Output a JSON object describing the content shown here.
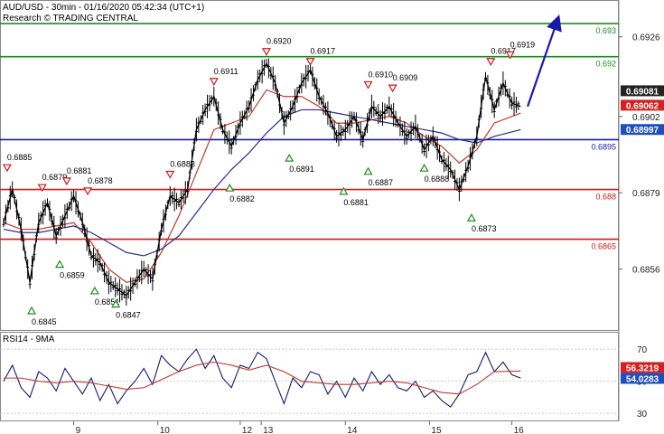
{
  "header": {
    "title": "AUD/USD - 30min - 01/16/2020 05:42:34 (UTC+1)",
    "research": "Research © TRADING CENTRAL"
  },
  "colors": {
    "green": "#1f8a1f",
    "blue": "#1a1aa8",
    "red": "#cc1a1a",
    "price": "#000000",
    "ma_red": "#c0392b",
    "ma_blue": "#2b2b8f",
    "badge_dark": "#222222",
    "badge_red": "#d42020",
    "badge_blue": "#1e4fc2"
  },
  "chart_data": [
    {
      "type": "candlestick",
      "title": "AUD/USD - 30min - 01/16/2020 05:42:34 (UTC+1)",
      "ylim": [
        0.6839,
        0.6936
      ],
      "y_ticks": [
        "0.6926",
        "0.6902",
        "0.6879",
        "0.6856"
      ],
      "x_ticks": [
        "9",
        "10",
        "12",
        "13",
        "14",
        "15",
        "16"
      ],
      "levels": [
        {
          "value": 0.693,
          "label": "0.693",
          "color": "#1f8a1f"
        },
        {
          "value": 0.692,
          "label": "0.692",
          "color": "#1f8a1f"
        },
        {
          "value": 0.6895,
          "label": "0.6895",
          "color": "#1a1aa8"
        },
        {
          "value": 0.688,
          "label": "0.688",
          "color": "#cc1a1a"
        },
        {
          "value": 0.6865,
          "label": "0.6865",
          "color": "#cc1a1a"
        }
      ],
      "highs": [
        {
          "x": 0.2,
          "value": "0.6885"
        },
        {
          "x": 2.2,
          "value": "0.6879"
        },
        {
          "x": 3.6,
          "value": "0.6881"
        },
        {
          "x": 4.8,
          "value": "0.6878"
        },
        {
          "x": 9.5,
          "value": "0.6883"
        },
        {
          "x": 12.0,
          "value": "0.6911"
        },
        {
          "x": 15.0,
          "value": "0.6920"
        },
        {
          "x": 17.5,
          "value": "0.6917"
        },
        {
          "x": 20.8,
          "value": "0.6910"
        },
        {
          "x": 22.2,
          "value": "0.6909"
        },
        {
          "x": 27.8,
          "value": "0.6917"
        },
        {
          "x": 28.9,
          "value": "0.6919"
        }
      ],
      "lows": [
        {
          "x": 1.6,
          "value": "0.6845"
        },
        {
          "x": 3.2,
          "value": "0.6859"
        },
        {
          "x": 5.2,
          "value": "0.6851"
        },
        {
          "x": 6.4,
          "value": "0.6847"
        },
        {
          "x": 12.9,
          "value": "0.6882"
        },
        {
          "x": 16.3,
          "value": "0.6891"
        },
        {
          "x": 19.4,
          "value": "0.6881"
        },
        {
          "x": 20.8,
          "value": "0.6887"
        },
        {
          "x": 24.0,
          "value": "0.6888"
        },
        {
          "x": 26.7,
          "value": "0.6873"
        }
      ],
      "series": [
        {
          "name": "close",
          "x": [
            0,
            0.5,
            1,
            1.5,
            2,
            2.5,
            3,
            3.5,
            4,
            4.5,
            5,
            5.5,
            6,
            6.5,
            7,
            7.5,
            8,
            8.5,
            9,
            9.5,
            10,
            10.5,
            11,
            11.5,
            12,
            12.5,
            13,
            13.5,
            14,
            14.5,
            15,
            15.5,
            16,
            16.5,
            17,
            17.5,
            18,
            18.5,
            19,
            19.5,
            20,
            20.5,
            21,
            21.5,
            22,
            22.5,
            23,
            23.5,
            24,
            24.5,
            25,
            25.5,
            26,
            26.5,
            27,
            27.5,
            28,
            28.5,
            29,
            29.5
          ],
          "values": [
            0.687,
            0.688,
            0.6868,
            0.6852,
            0.687,
            0.6876,
            0.6866,
            0.6872,
            0.6878,
            0.687,
            0.686,
            0.6858,
            0.6852,
            0.685,
            0.6848,
            0.6852,
            0.6856,
            0.6853,
            0.6868,
            0.6878,
            0.6876,
            0.688,
            0.6898,
            0.6904,
            0.6908,
            0.6898,
            0.6893,
            0.69,
            0.6905,
            0.6913,
            0.6918,
            0.6912,
            0.69,
            0.6905,
            0.6912,
            0.6916,
            0.6908,
            0.6903,
            0.6896,
            0.6898,
            0.6902,
            0.6895,
            0.6905,
            0.6902,
            0.6905,
            0.69,
            0.6896,
            0.6899,
            0.6892,
            0.6896,
            0.6889,
            0.6886,
            0.688,
            0.6887,
            0.6896,
            0.6914,
            0.6904,
            0.6912,
            0.6906,
            0.6905
          ]
        },
        {
          "name": "ma_red",
          "x": [
            0,
            1,
            2,
            3,
            4,
            5,
            6,
            7,
            8,
            9,
            10,
            11,
            12,
            13,
            14,
            15,
            16,
            17,
            18,
            19,
            20,
            21,
            22,
            23,
            24,
            25,
            26,
            27,
            28,
            29.5
          ],
          "values": [
            0.687,
            0.6868,
            0.6868,
            0.6869,
            0.687,
            0.6864,
            0.6856,
            0.6852,
            0.6853,
            0.6861,
            0.6872,
            0.6885,
            0.6898,
            0.69,
            0.6902,
            0.691,
            0.6908,
            0.6908,
            0.6905,
            0.69,
            0.69,
            0.6901,
            0.6902,
            0.69,
            0.6896,
            0.6893,
            0.6888,
            0.6892,
            0.69,
            0.6903
          ]
        },
        {
          "name": "ma_blue",
          "x": [
            0,
            1,
            2,
            3,
            4,
            5,
            6,
            7,
            8,
            9,
            10,
            11,
            12,
            13,
            14,
            15,
            16,
            17,
            18,
            19,
            20,
            21,
            22,
            23,
            24,
            25,
            26,
            27,
            28,
            29.5
          ],
          "values": [
            0.6868,
            0.6867,
            0.6867,
            0.6868,
            0.6869,
            0.6867,
            0.6864,
            0.6861,
            0.686,
            0.6862,
            0.6866,
            0.6873,
            0.688,
            0.6886,
            0.6891,
            0.6897,
            0.6902,
            0.6904,
            0.6904,
            0.6903,
            0.6902,
            0.6901,
            0.69,
            0.6899,
            0.6898,
            0.6897,
            0.6895,
            0.6894,
            0.6896,
            0.6898
          ]
        }
      ],
      "forecast": {
        "from_x": 29.9,
        "from_value": 0.6905,
        "to_x": 31.6,
        "to_value": 0.6931
      },
      "price_badges": [
        {
          "value": 0.69081,
          "label": "0.69081",
          "color": "#222222"
        },
        {
          "value": 0.69062,
          "label": "0.69062",
          "color": "#d42020"
        },
        {
          "value": 0.68997,
          "label": "0.68997",
          "color": "#1e4fc2"
        }
      ]
    },
    {
      "type": "line",
      "title": "RSI14 - 9MA",
      "ylim": [
        25,
        78
      ],
      "y_ticks": [
        "70",
        "50",
        "30"
      ],
      "levels": [
        {
          "value": 70,
          "color": "#bbbbbb"
        },
        {
          "value": 50,
          "color": "#bbbbbb"
        },
        {
          "value": 30,
          "color": "#bbbbbb"
        }
      ],
      "series": [
        {
          "name": "RSI14",
          "x": [
            0,
            0.5,
            1,
            1.5,
            2,
            2.5,
            3,
            3.5,
            4,
            4.5,
            5,
            5.5,
            6,
            6.5,
            7,
            7.5,
            8,
            8.5,
            9,
            9.5,
            10,
            10.5,
            11,
            11.5,
            12,
            12.5,
            13,
            13.5,
            14,
            14.5,
            15,
            15.5,
            16,
            16.5,
            17,
            17.5,
            18,
            18.5,
            19,
            19.5,
            20,
            20.5,
            21,
            21.5,
            22,
            22.5,
            23,
            23.5,
            24,
            24.5,
            25,
            25.5,
            26,
            26.5,
            27,
            27.5,
            28,
            28.5,
            29,
            29.5
          ],
          "values": [
            50,
            60,
            46,
            40,
            56,
            52,
            44,
            58,
            50,
            42,
            52,
            38,
            48,
            36,
            44,
            50,
            58,
            48,
            66,
            60,
            56,
            64,
            70,
            58,
            66,
            52,
            46,
            60,
            58,
            68,
            64,
            50,
            36,
            52,
            46,
            56,
            54,
            42,
            50,
            40,
            52,
            44,
            56,
            48,
            54,
            46,
            44,
            50,
            40,
            44,
            38,
            34,
            42,
            54,
            56,
            68,
            56,
            62,
            54,
            52
          ]
        },
        {
          "name": "9MA",
          "x": [
            0,
            1,
            2,
            3,
            4,
            5,
            6,
            7,
            8,
            9,
            10,
            11,
            12,
            13,
            14,
            15,
            16,
            17,
            18,
            19,
            20,
            21,
            22,
            23,
            24,
            25,
            26,
            27,
            28,
            29.5
          ],
          "values": [
            52,
            52,
            50,
            49,
            50,
            49,
            47,
            45,
            46,
            51,
            56,
            60,
            62,
            60,
            57,
            60,
            56,
            50,
            49,
            48,
            48,
            49,
            50,
            49,
            46,
            43,
            42,
            48,
            56,
            56.3
          ]
        }
      ],
      "value_badges": [
        {
          "value": 56.3219,
          "label": "56.3219",
          "color": "#d42020"
        },
        {
          "value": 54.0283,
          "label": "54.0283",
          "color": "#1e4fc2"
        }
      ]
    }
  ]
}
